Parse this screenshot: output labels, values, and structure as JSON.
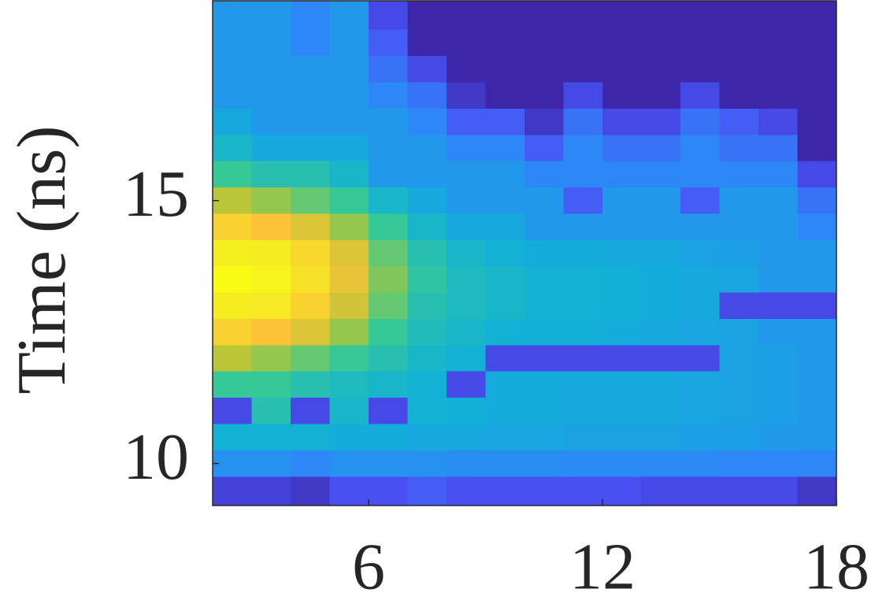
{
  "chart_data": {
    "type": "heatmap",
    "y_label": "Time (ns)",
    "xlim": [
      2,
      18
    ],
    "ylim": [
      9.2,
      18.8
    ],
    "xticks": [
      6,
      12,
      18
    ],
    "yticks": [
      10,
      15
    ],
    "colors": [
      "#3e26a8",
      "#4852f4",
      "#2d87f7",
      "#11b1d6",
      "#37c898",
      "#abc739",
      "#fec338",
      "#f5e924",
      "#f9fb15"
    ],
    "x": [
      2.5,
      3.5,
      4.5,
      5.5,
      6.5,
      7.5,
      8.5,
      9.5,
      10.5,
      11.5,
      12.5,
      13.5,
      14.5,
      15.5,
      16.5,
      17.5
    ],
    "y": [
      18.5,
      18.0,
      17.5,
      17.0,
      16.5,
      16.0,
      15.5,
      15.0,
      14.5,
      14.0,
      13.5,
      13.0,
      12.5,
      12.0,
      11.5,
      11.0,
      10.5,
      10.0,
      9.5
    ],
    "z": [
      [
        0.3,
        0.3,
        0.25,
        0.3,
        0.1,
        0,
        0,
        0,
        0,
        0,
        0,
        0,
        0,
        0,
        0,
        0
      ],
      [
        0.3,
        0.3,
        0.25,
        0.3,
        0.15,
        0,
        0,
        0,
        0,
        0,
        0,
        0,
        0,
        0,
        0,
        0
      ],
      [
        0.3,
        0.3,
        0.3,
        0.3,
        0.2,
        0.1,
        0,
        0,
        0,
        0,
        0,
        0,
        0,
        0,
        0,
        0
      ],
      [
        0.3,
        0.3,
        0.3,
        0.3,
        0.25,
        0.2,
        0.05,
        0,
        0,
        0.1,
        0,
        0,
        0.1,
        0,
        0,
        0
      ],
      [
        0.35,
        0.3,
        0.3,
        0.3,
        0.3,
        0.25,
        0.15,
        0.15,
        0.05,
        0.2,
        0.1,
        0.1,
        0.2,
        0.15,
        0.1,
        0
      ],
      [
        0.4,
        0.35,
        0.35,
        0.35,
        0.3,
        0.3,
        0.25,
        0.25,
        0.15,
        0.25,
        0.2,
        0.2,
        0.25,
        0.2,
        0.2,
        0
      ],
      [
        0.5,
        0.45,
        0.45,
        0.4,
        0.3,
        0.3,
        0.3,
        0.3,
        0.25,
        0.25,
        0.25,
        0.25,
        0.25,
        0.25,
        0.25,
        0.1
      ],
      [
        0.65,
        0.6,
        0.55,
        0.5,
        0.4,
        0.35,
        0.3,
        0.3,
        0.3,
        0.15,
        0.3,
        0.3,
        0.15,
        0.3,
        0.3,
        0.2
      ],
      [
        0.8,
        0.75,
        0.7,
        0.6,
        0.5,
        0.4,
        0.35,
        0.35,
        0.3,
        0.3,
        0.3,
        0.3,
        0.3,
        0.3,
        0.3,
        0.25
      ],
      [
        0.92,
        0.9,
        0.82,
        0.7,
        0.55,
        0.45,
        0.4,
        0.38,
        0.36,
        0.36,
        0.35,
        0.35,
        0.33,
        0.32,
        0.3,
        0.3
      ],
      [
        1.0,
        0.95,
        0.85,
        0.72,
        0.58,
        0.48,
        0.42,
        0.4,
        0.38,
        0.38,
        0.37,
        0.36,
        0.35,
        0.34,
        0.3,
        0.3
      ],
      [
        0.9,
        0.88,
        0.8,
        0.68,
        0.55,
        0.45,
        0.42,
        0.4,
        0.38,
        0.38,
        0.37,
        0.36,
        0.35,
        0.1,
        0.1,
        0.1
      ],
      [
        0.8,
        0.75,
        0.7,
        0.6,
        0.5,
        0.43,
        0.4,
        0.38,
        0.37,
        0.37,
        0.36,
        0.35,
        0.34,
        0.33,
        0.3,
        0.3
      ],
      [
        0.65,
        0.6,
        0.55,
        0.5,
        0.45,
        0.4,
        0.38,
        0.1,
        0.1,
        0.1,
        0.1,
        0.1,
        0.1,
        0.33,
        0.32,
        0.3
      ],
      [
        0.5,
        0.5,
        0.45,
        0.42,
        0.4,
        0.38,
        0.1,
        0.36,
        0.36,
        0.35,
        0.35,
        0.35,
        0.34,
        0.33,
        0.32,
        0.3
      ],
      [
        0.1,
        0.45,
        0.1,
        0.4,
        0.1,
        0.38,
        0.37,
        0.36,
        0.36,
        0.35,
        0.35,
        0.35,
        0.34,
        0.33,
        0.32,
        0.3
      ],
      [
        0.38,
        0.38,
        0.38,
        0.36,
        0.36,
        0.35,
        0.35,
        0.34,
        0.34,
        0.33,
        0.33,
        0.33,
        0.32,
        0.32,
        0.31,
        0.3
      ],
      [
        0.28,
        0.28,
        0.25,
        0.28,
        0.28,
        0.28,
        0.27,
        0.27,
        0.27,
        0.26,
        0.26,
        0.26,
        0.26,
        0.25,
        0.25,
        0.25
      ],
      [
        0.08,
        0.08,
        0.05,
        0.12,
        0.12,
        0.15,
        0.12,
        0.12,
        0.12,
        0.12,
        0.12,
        0.1,
        0.1,
        0.1,
        0.1,
        0.05
      ]
    ]
  }
}
